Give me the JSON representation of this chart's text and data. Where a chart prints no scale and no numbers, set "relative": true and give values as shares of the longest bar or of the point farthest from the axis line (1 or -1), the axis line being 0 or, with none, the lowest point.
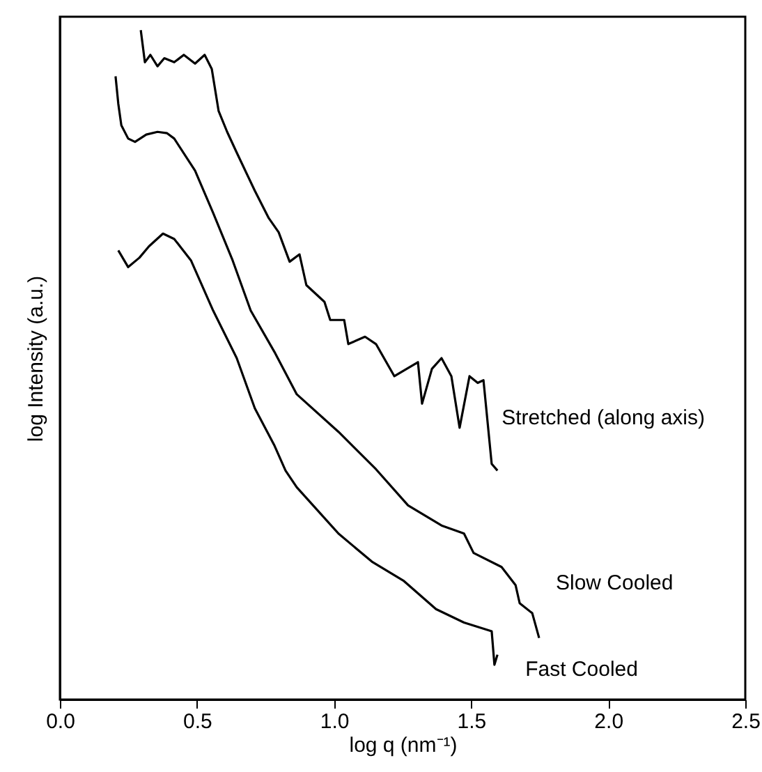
{
  "chart_data": {
    "type": "line",
    "relative": true,
    "tick_labels": "x",
    "line_style": "solid",
    "xlabel": "log q (nm⁻¹)",
    "ylabel": "log Intensity (a.u.)",
    "xlim": [
      0,
      2.5
    ],
    "xticks": [
      {
        "value": 0,
        "label": "0.0"
      },
      {
        "value": 0.5,
        "label": "0.5"
      },
      {
        "value": 1,
        "label": "1.0"
      },
      {
        "value": 1.5,
        "label": "1.5"
      },
      {
        "value": 2,
        "label": "2.0"
      },
      {
        "value": 2.5,
        "label": "2.5"
      }
    ],
    "series": [
      {
        "name": "Stretched (along axis)",
        "color": "#000000",
        "x": [
          0.295,
          0.31,
          0.33,
          0.356,
          0.381,
          0.417,
          0.452,
          0.493,
          0.528,
          0.554,
          0.579,
          0.61,
          0.645,
          0.711,
          0.762,
          0.798,
          0.838,
          0.874,
          0.899,
          0.965,
          0.986,
          1.037,
          1.052,
          1.113,
          1.153,
          1.22,
          1.265,
          1.306,
          1.321,
          1.357,
          1.392,
          1.428,
          1.458,
          1.494,
          1.524,
          1.545,
          1.575,
          1.596
        ],
        "values": [
          1.0,
          0.952,
          0.963,
          0.946,
          0.958,
          0.952,
          0.963,
          0.95,
          0.963,
          0.942,
          0.879,
          0.848,
          0.817,
          0.76,
          0.719,
          0.698,
          0.654,
          0.665,
          0.619,
          0.594,
          0.567,
          0.567,
          0.531,
          0.542,
          0.531,
          0.483,
          0.494,
          0.504,
          0.442,
          0.494,
          0.51,
          0.483,
          0.406,
          0.483,
          0.473,
          0.477,
          0.352,
          0.342
        ]
      },
      {
        "name": "Slow Cooled",
        "color": "#000000",
        "x": [
          0.203,
          0.213,
          0.224,
          0.249,
          0.274,
          0.315,
          0.356,
          0.391,
          0.417,
          0.493,
          0.559,
          0.63,
          0.696,
          0.783,
          0.864,
          1.016,
          1.153,
          1.27,
          1.392,
          1.474,
          1.509,
          1.611,
          1.662,
          1.677,
          1.723,
          1.748
        ],
        "values": [
          0.931,
          0.89,
          0.858,
          0.838,
          0.833,
          0.844,
          0.848,
          0.846,
          0.838,
          0.79,
          0.727,
          0.656,
          0.581,
          0.519,
          0.456,
          0.4,
          0.344,
          0.29,
          0.26,
          0.248,
          0.219,
          0.198,
          0.171,
          0.144,
          0.129,
          0.092
        ]
      },
      {
        "name": "Fast Cooled",
        "color": "#000000",
        "x": [
          0.213,
          0.249,
          0.29,
          0.325,
          0.376,
          0.417,
          0.478,
          0.559,
          0.645,
          0.711,
          0.783,
          0.823,
          0.864,
          1.016,
          1.138,
          1.255,
          1.372,
          1.474,
          1.575,
          1.585,
          1.596
        ],
        "values": [
          0.671,
          0.646,
          0.66,
          0.677,
          0.696,
          0.688,
          0.656,
          0.581,
          0.51,
          0.435,
          0.379,
          0.342,
          0.317,
          0.248,
          0.206,
          0.177,
          0.135,
          0.115,
          0.102,
          0.052,
          0.067
        ]
      }
    ]
  }
}
